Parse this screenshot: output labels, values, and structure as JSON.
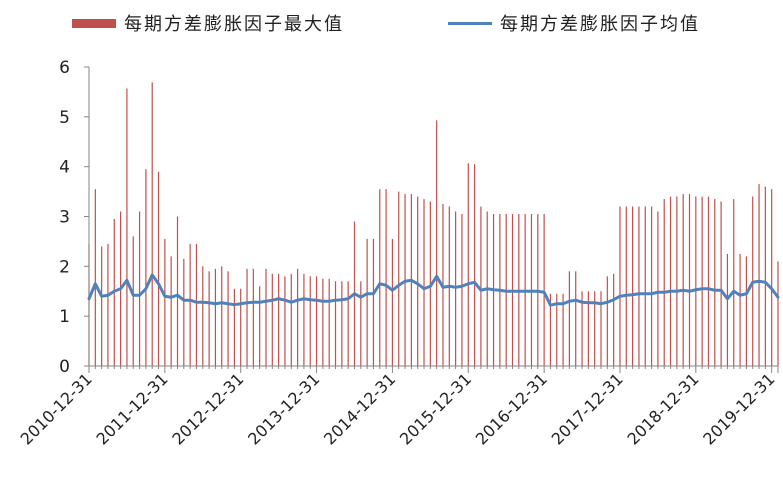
{
  "chart_data": {
    "type": "bar+line",
    "legend": {
      "position": "top",
      "items": [
        {
          "name": "每期方差膨胀因子最大值",
          "kind": "bar",
          "color": "#C0504D"
        },
        {
          "name": "每期方差膨胀因子均值",
          "kind": "line",
          "color": "#4F81BD"
        }
      ]
    },
    "x_tick_labels": [
      "2010-12-31",
      "2011-12-31",
      "2012-12-31",
      "2013-12-31",
      "2014-12-31",
      "2015-12-31",
      "2016-12-31",
      "2017-12-31",
      "2018-12-31",
      "2019-12-31"
    ],
    "y_tick_labels": [
      "0",
      "1",
      "2",
      "3",
      "4",
      "5",
      "6"
    ],
    "ylim": [
      0,
      6
    ],
    "grid": false,
    "period": "monthly, 2010-12-31 to 2020-01-31",
    "series": [
      {
        "name": "每期方差膨胀因子最大值",
        "type": "bar",
        "color": "#C0504D",
        "values": [
          2.45,
          3.55,
          2.4,
          2.45,
          2.95,
          3.1,
          5.57,
          2.6,
          3.1,
          3.95,
          5.69,
          3.9,
          2.55,
          2.2,
          3.0,
          2.15,
          2.45,
          2.45,
          2.0,
          1.9,
          1.95,
          2.0,
          1.9,
          1.55,
          1.55,
          1.95,
          1.95,
          1.6,
          1.95,
          1.85,
          1.85,
          1.8,
          1.85,
          1.95,
          1.85,
          1.8,
          1.8,
          1.75,
          1.75,
          1.7,
          1.7,
          1.7,
          2.9,
          1.7,
          2.55,
          2.55,
          3.55,
          3.55,
          2.55,
          3.5,
          3.45,
          3.45,
          3.4,
          3.35,
          3.3,
          4.93,
          3.25,
          3.2,
          3.1,
          3.05,
          4.07,
          4.05,
          3.2,
          3.1,
          3.05,
          3.05,
          3.05,
          3.05,
          3.05,
          3.05,
          3.05,
          3.05,
          3.05,
          1.45,
          1.45,
          1.45,
          1.9,
          1.9,
          1.5,
          1.5,
          1.5,
          1.5,
          1.8,
          1.85,
          3.2,
          3.2,
          3.2,
          3.2,
          3.2,
          3.2,
          3.1,
          3.35,
          3.4,
          3.4,
          3.45,
          3.45,
          3.4,
          3.4,
          3.4,
          3.35,
          3.3,
          2.25,
          3.35,
          2.25,
          2.2,
          3.4,
          3.65,
          3.6,
          3.55,
          2.1
        ]
      },
      {
        "name": "每期方差膨胀因子均值",
        "type": "line",
        "color": "#4F81BD",
        "values": [
          1.35,
          1.65,
          1.4,
          1.42,
          1.5,
          1.55,
          1.72,
          1.42,
          1.42,
          1.55,
          1.83,
          1.65,
          1.4,
          1.38,
          1.42,
          1.32,
          1.32,
          1.28,
          1.28,
          1.27,
          1.25,
          1.27,
          1.25,
          1.23,
          1.25,
          1.27,
          1.28,
          1.28,
          1.3,
          1.32,
          1.35,
          1.32,
          1.28,
          1.32,
          1.35,
          1.33,
          1.32,
          1.3,
          1.3,
          1.32,
          1.33,
          1.35,
          1.45,
          1.38,
          1.45,
          1.45,
          1.65,
          1.62,
          1.52,
          1.62,
          1.7,
          1.72,
          1.65,
          1.55,
          1.6,
          1.8,
          1.58,
          1.6,
          1.58,
          1.6,
          1.65,
          1.68,
          1.52,
          1.55,
          1.53,
          1.52,
          1.5,
          1.5,
          1.5,
          1.5,
          1.5,
          1.5,
          1.48,
          1.22,
          1.25,
          1.25,
          1.3,
          1.32,
          1.28,
          1.27,
          1.27,
          1.25,
          1.28,
          1.33,
          1.4,
          1.42,
          1.43,
          1.45,
          1.45,
          1.45,
          1.48,
          1.48,
          1.5,
          1.5,
          1.52,
          1.5,
          1.53,
          1.55,
          1.55,
          1.52,
          1.52,
          1.35,
          1.5,
          1.42,
          1.45,
          1.68,
          1.7,
          1.68,
          1.55,
          1.38
        ]
      }
    ]
  }
}
